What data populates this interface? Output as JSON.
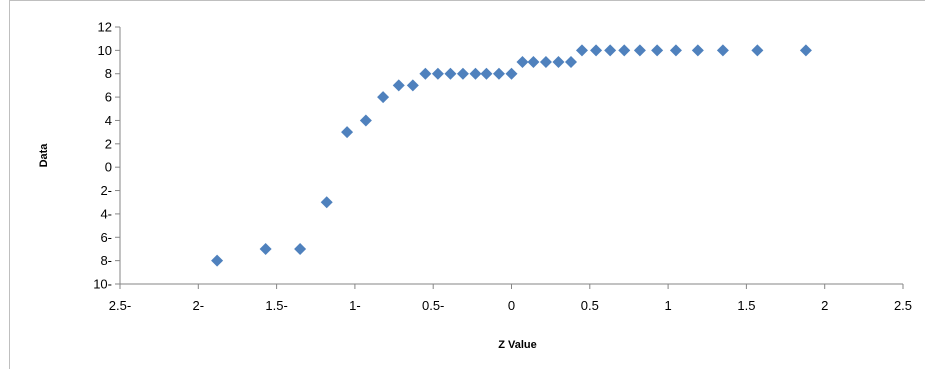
{
  "chart_data": {
    "type": "scatter",
    "xlabel": "Z Value",
    "ylabel": "Data",
    "xlim": [
      -2.5,
      2.5
    ],
    "ylim": [
      -10,
      12
    ],
    "grid": false,
    "legend": "none",
    "marker_color": "#4f81bd",
    "x_ticks": [
      -2.5,
      -2,
      -1.5,
      -1,
      -0.5,
      0,
      0.5,
      1,
      1.5,
      2,
      2.5
    ],
    "x_tick_labels": [
      "2.5-",
      "2-",
      "1.5-",
      "1-",
      "0.5-",
      "0",
      "0.5",
      "1",
      "1.5",
      "2",
      "2.5"
    ],
    "y_ticks": [
      12,
      10,
      8,
      6,
      4,
      2,
      0,
      -2,
      -4,
      -6,
      -8,
      -10
    ],
    "y_tick_labels": [
      "12",
      "10",
      "8",
      "6",
      "4",
      "2",
      "0",
      "2-",
      "4-",
      "6-",
      "8-",
      "10-"
    ],
    "points": [
      {
        "x": -1.88,
        "y": -8
      },
      {
        "x": -1.57,
        "y": -7
      },
      {
        "x": -1.35,
        "y": -7
      },
      {
        "x": -1.18,
        "y": -3
      },
      {
        "x": -1.05,
        "y": 3
      },
      {
        "x": -0.93,
        "y": 4
      },
      {
        "x": -0.82,
        "y": 6
      },
      {
        "x": -0.72,
        "y": 7
      },
      {
        "x": -0.63,
        "y": 7
      },
      {
        "x": -0.55,
        "y": 8
      },
      {
        "x": -0.47,
        "y": 8
      },
      {
        "x": -0.39,
        "y": 8
      },
      {
        "x": -0.31,
        "y": 8
      },
      {
        "x": -0.23,
        "y": 8
      },
      {
        "x": -0.16,
        "y": 8
      },
      {
        "x": -0.08,
        "y": 8
      },
      {
        "x": 0.0,
        "y": 8
      },
      {
        "x": 0.07,
        "y": 9
      },
      {
        "x": 0.14,
        "y": 9
      },
      {
        "x": 0.22,
        "y": 9
      },
      {
        "x": 0.3,
        "y": 9
      },
      {
        "x": 0.38,
        "y": 9
      },
      {
        "x": 0.45,
        "y": 10
      },
      {
        "x": 0.54,
        "y": 10
      },
      {
        "x": 0.63,
        "y": 10
      },
      {
        "x": 0.72,
        "y": 10
      },
      {
        "x": 0.82,
        "y": 10
      },
      {
        "x": 0.93,
        "y": 10
      },
      {
        "x": 1.05,
        "y": 10
      },
      {
        "x": 1.19,
        "y": 10
      },
      {
        "x": 1.35,
        "y": 10
      },
      {
        "x": 1.57,
        "y": 10
      },
      {
        "x": 1.88,
        "y": 10
      }
    ]
  }
}
